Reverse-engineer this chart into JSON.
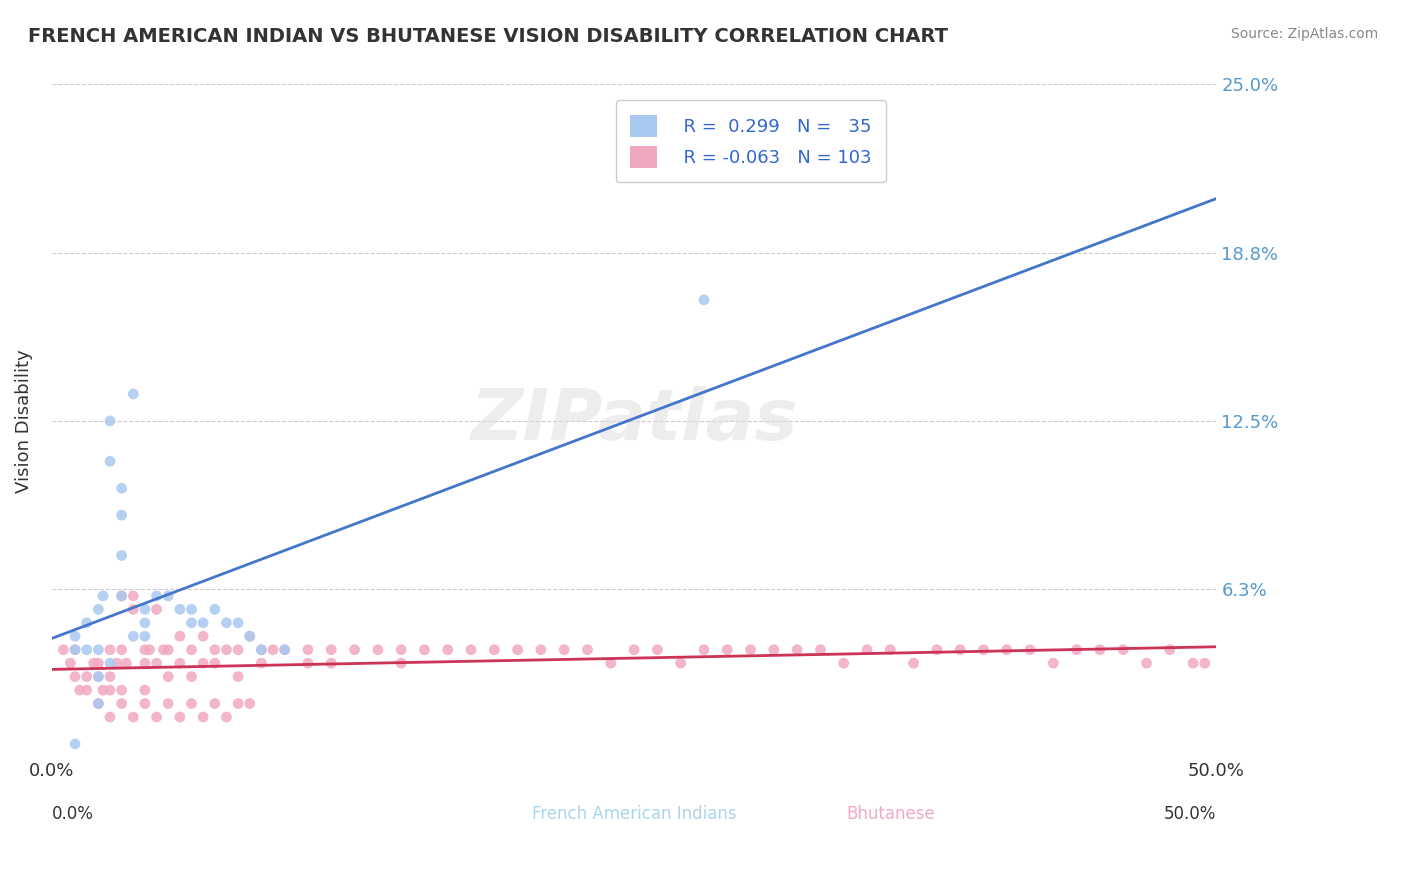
{
  "title": "FRENCH AMERICAN INDIAN VS BHUTANESE VISION DISABILITY CORRELATION CHART",
  "source": "Source: ZipAtlas.com",
  "xlabel": "",
  "ylabel": "Vision Disability",
  "xlim": [
    0.0,
    0.5
  ],
  "ylim": [
    0.0,
    0.25
  ],
  "yticks": [
    0.0,
    0.0625,
    0.125,
    0.1875,
    0.25
  ],
  "ytick_labels": [
    "",
    "6.3%",
    "12.5%",
    "18.8%",
    "25.0%"
  ],
  "xticks": [
    0.0,
    0.125,
    0.25,
    0.375,
    0.5
  ],
  "xtick_labels": [
    "0.0%",
    "",
    "",
    "",
    "50.0%"
  ],
  "legend_r1": "R =  0.299",
  "legend_n1": "N =  35",
  "legend_r2": "R = -0.063",
  "legend_n2": "N = 103",
  "group1_color": "#a8c8f0",
  "group2_color": "#f0a8c0",
  "group1_line_color": "#4477cc",
  "group2_line_color": "#cc3355",
  "trend1_color": "#aaaaaa",
  "background_color": "#ffffff",
  "watermark": "ZIPatlas",
  "french_x": [
    0.01,
    0.01,
    0.015,
    0.015,
    0.02,
    0.02,
    0.02,
    0.022,
    0.025,
    0.025,
    0.03,
    0.03,
    0.03,
    0.035,
    0.04,
    0.04,
    0.045,
    0.05,
    0.055,
    0.06,
    0.06,
    0.065,
    0.07,
    0.075,
    0.08,
    0.085,
    0.09,
    0.1,
    0.02,
    0.025,
    0.03,
    0.035,
    0.04,
    0.28,
    0.01
  ],
  "french_y": [
    0.04,
    0.045,
    0.05,
    0.04,
    0.055,
    0.04,
    0.03,
    0.06,
    0.11,
    0.125,
    0.09,
    0.1,
    0.06,
    0.135,
    0.055,
    0.05,
    0.06,
    0.06,
    0.055,
    0.055,
    0.05,
    0.05,
    0.055,
    0.05,
    0.05,
    0.045,
    0.04,
    0.04,
    0.02,
    0.035,
    0.075,
    0.045,
    0.045,
    0.17,
    0.005
  ],
  "bhutanese_x": [
    0.005,
    0.008,
    0.01,
    0.01,
    0.012,
    0.015,
    0.015,
    0.018,
    0.02,
    0.02,
    0.022,
    0.025,
    0.025,
    0.025,
    0.028,
    0.03,
    0.03,
    0.03,
    0.032,
    0.035,
    0.035,
    0.04,
    0.04,
    0.04,
    0.042,
    0.045,
    0.045,
    0.048,
    0.05,
    0.05,
    0.055,
    0.055,
    0.06,
    0.06,
    0.065,
    0.065,
    0.07,
    0.07,
    0.075,
    0.08,
    0.08,
    0.085,
    0.09,
    0.09,
    0.095,
    0.1,
    0.11,
    0.11,
    0.12,
    0.12,
    0.13,
    0.14,
    0.15,
    0.15,
    0.16,
    0.17,
    0.18,
    0.19,
    0.2,
    0.21,
    0.22,
    0.23,
    0.24,
    0.25,
    0.26,
    0.27,
    0.28,
    0.29,
    0.3,
    0.31,
    0.32,
    0.33,
    0.34,
    0.35,
    0.36,
    0.37,
    0.38,
    0.39,
    0.4,
    0.41,
    0.42,
    0.43,
    0.44,
    0.45,
    0.46,
    0.47,
    0.48,
    0.49,
    0.495,
    0.02,
    0.025,
    0.03,
    0.035,
    0.04,
    0.045,
    0.05,
    0.055,
    0.06,
    0.065,
    0.07,
    0.075,
    0.08,
    0.085
  ],
  "bhutanese_y": [
    0.04,
    0.035,
    0.04,
    0.03,
    0.025,
    0.03,
    0.025,
    0.035,
    0.035,
    0.03,
    0.025,
    0.04,
    0.03,
    0.025,
    0.035,
    0.04,
    0.06,
    0.025,
    0.035,
    0.055,
    0.06,
    0.04,
    0.035,
    0.025,
    0.04,
    0.055,
    0.035,
    0.04,
    0.04,
    0.03,
    0.045,
    0.035,
    0.04,
    0.03,
    0.045,
    0.035,
    0.04,
    0.035,
    0.04,
    0.04,
    0.03,
    0.045,
    0.04,
    0.035,
    0.04,
    0.04,
    0.04,
    0.035,
    0.04,
    0.035,
    0.04,
    0.04,
    0.04,
    0.035,
    0.04,
    0.04,
    0.04,
    0.04,
    0.04,
    0.04,
    0.04,
    0.04,
    0.035,
    0.04,
    0.04,
    0.035,
    0.04,
    0.04,
    0.04,
    0.04,
    0.04,
    0.04,
    0.035,
    0.04,
    0.04,
    0.035,
    0.04,
    0.04,
    0.04,
    0.04,
    0.04,
    0.035,
    0.04,
    0.04,
    0.04,
    0.035,
    0.04,
    0.035,
    0.035,
    0.02,
    0.015,
    0.02,
    0.015,
    0.02,
    0.015,
    0.02,
    0.015,
    0.02,
    0.015,
    0.02,
    0.015,
    0.02,
    0.02
  ]
}
